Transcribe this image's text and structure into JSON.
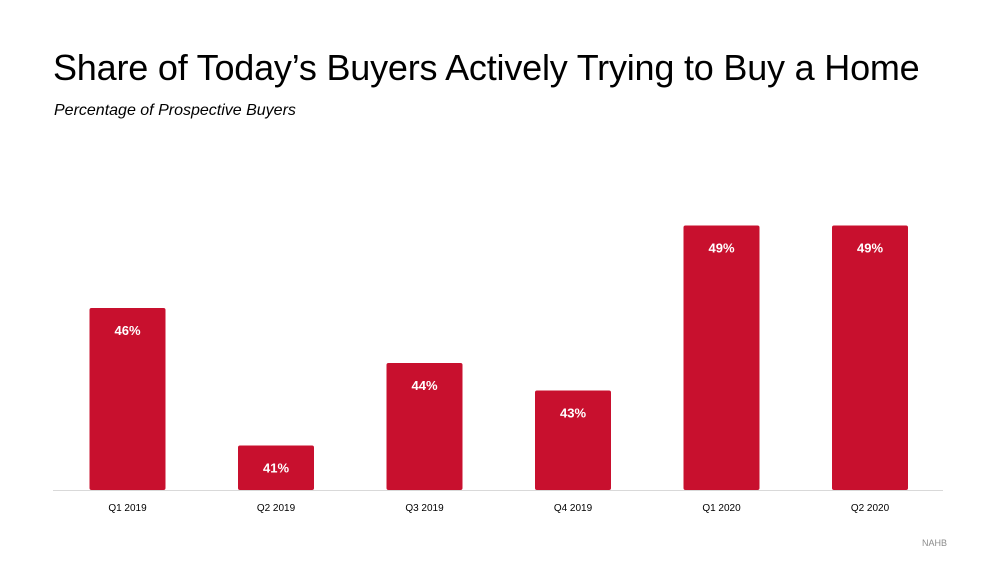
{
  "title": "Share of Today’s Buyers Actively Trying to Buy a Home",
  "subtitle": "Percentage of Prospective Buyers",
  "source": "NAHB",
  "colors": {
    "bar": "#c8102e",
    "bar_label": "#ffffff",
    "axis": "#d9d9d9",
    "tick_label": "#000000"
  },
  "chart_data": {
    "type": "bar",
    "title": "Share of Today’s Buyers Actively Trying to Buy a Home",
    "subtitle": "Percentage of Prospective Buyers",
    "xlabel": "",
    "ylabel": "",
    "categories": [
      "Q1 2019",
      "Q2 2019",
      "Q3 2019",
      "Q4 2019",
      "Q1 2020",
      "Q2 2020"
    ],
    "values": [
      46,
      41,
      44,
      43,
      49,
      49
    ],
    "value_labels": [
      "46%",
      "41%",
      "44%",
      "43%",
      "49%",
      "49%"
    ],
    "unit": "%",
    "grid": false,
    "legend": "none"
  }
}
